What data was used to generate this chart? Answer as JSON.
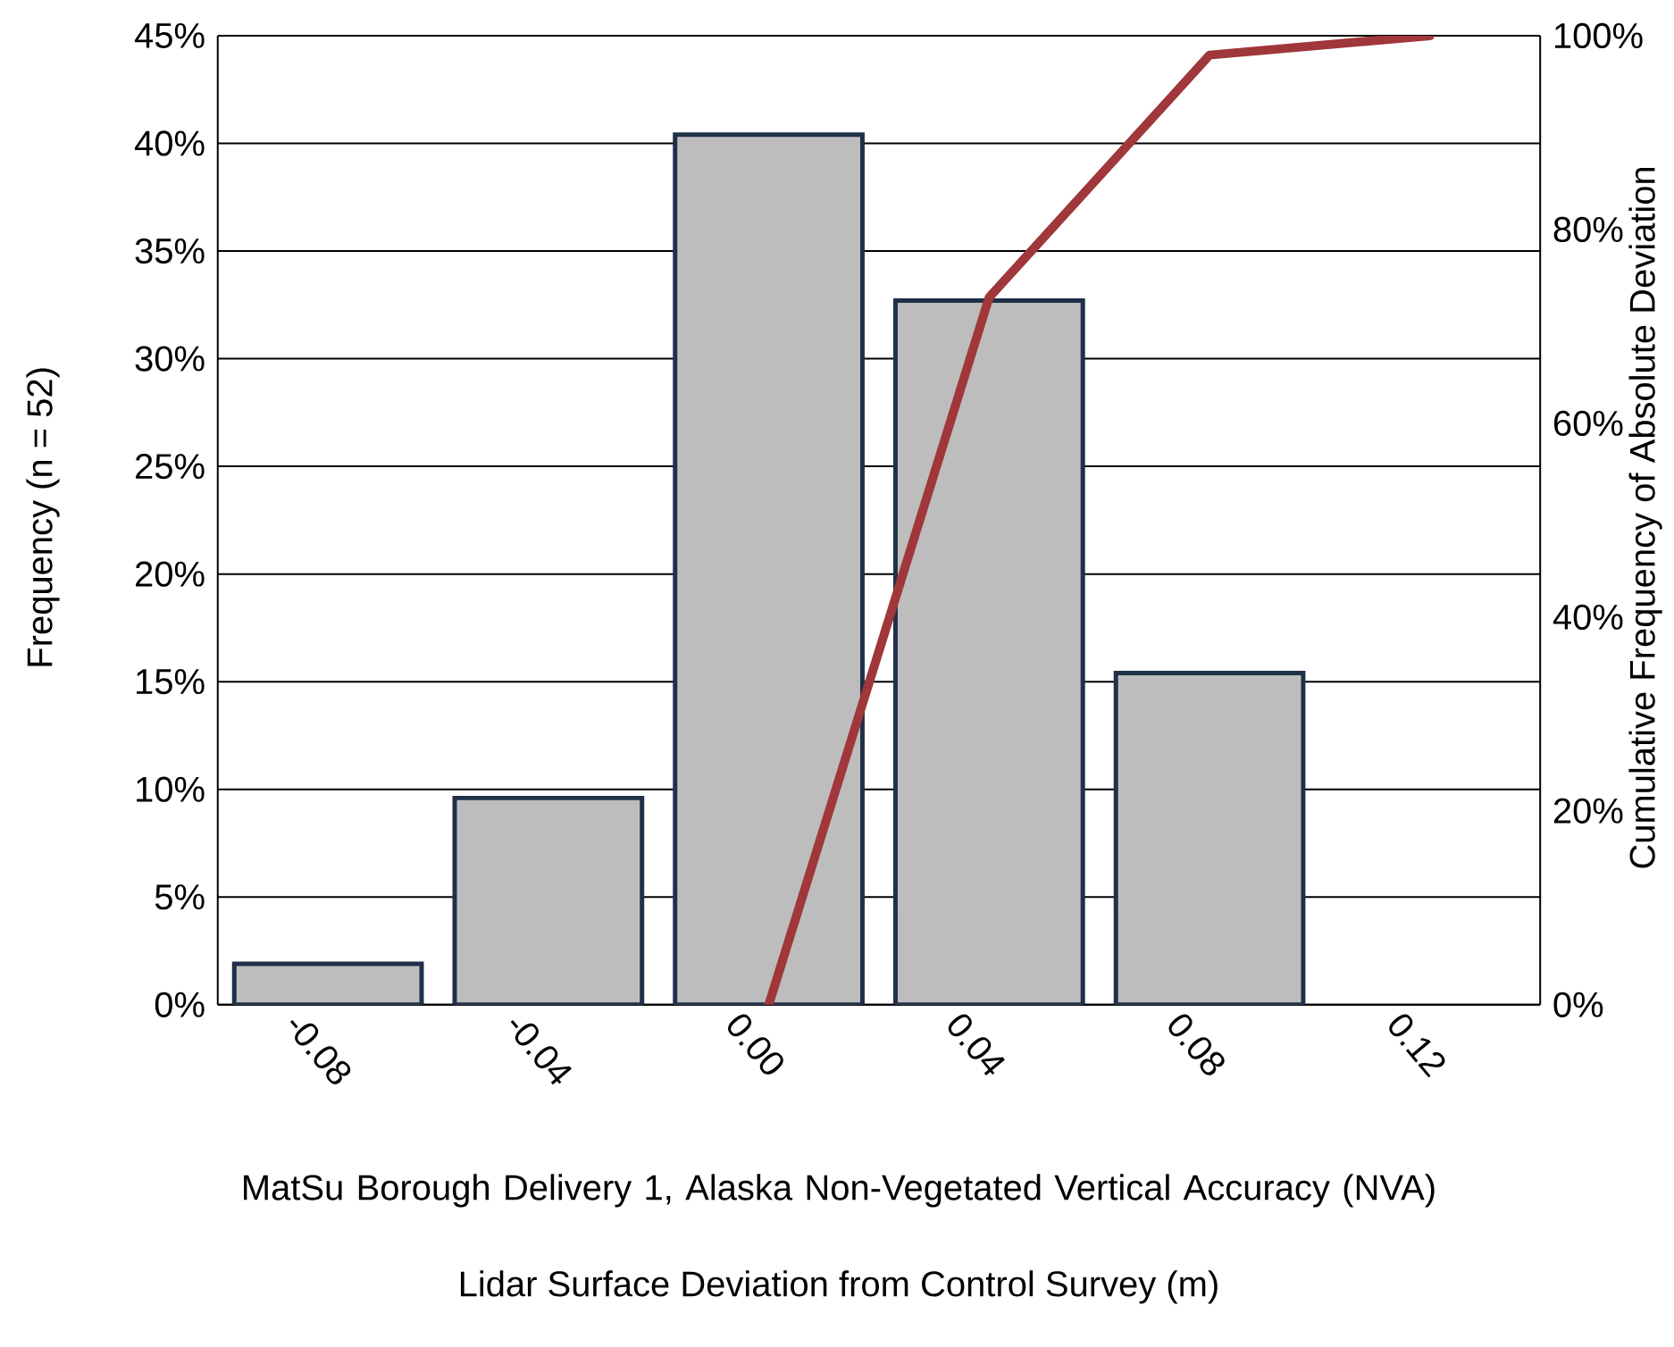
{
  "chart_data": {
    "type": "bar",
    "xlabel": "MatSu Borough Delivery 1, Alaska Non-Vegetated Vertical Accuracy (NVA)",
    "ylabel": "Frequency (n = 52)",
    "y2label": "Cumulative Frequency of Absolute Deviation",
    "annotations": [
      "Lidar Surface Deviation from Control Survey (m)"
    ],
    "categories": [
      "-0.08",
      "-0.04",
      "0.00",
      "0.04",
      "0.08",
      "0.12"
    ],
    "series": [
      {
        "color": "#bdbdbd",
        "values": [
          1.9,
          9.6,
          40.4,
          32.7,
          15.4,
          null
        ]
      },
      {
        "type": "line",
        "axis": "y2",
        "color": "#a0373a",
        "values": [
          null,
          null,
          0,
          73,
          98,
          100
        ]
      }
    ],
    "ylim": [
      0,
      45
    ],
    "yticks": [
      {
        "value": 0,
        "label": "0%"
      },
      {
        "value": 5,
        "label": "5%"
      },
      {
        "value": 10,
        "label": "10%"
      },
      {
        "value": 15,
        "label": "15%"
      },
      {
        "value": 20,
        "label": "20%"
      },
      {
        "value": 25,
        "label": "25%"
      },
      {
        "value": 30,
        "label": "30%"
      },
      {
        "value": 35,
        "label": "35%"
      },
      {
        "value": 40,
        "label": "40%"
      },
      {
        "value": 45,
        "label": "45%"
      }
    ],
    "y2lim": [
      0,
      100
    ],
    "y2ticks": [
      {
        "value": 0,
        "label": "0%"
      },
      {
        "value": 20,
        "label": "20%"
      },
      {
        "value": 40,
        "label": "40%"
      },
      {
        "value": 60,
        "label": "60%"
      },
      {
        "value": 80,
        "label": "80%"
      },
      {
        "value": 100,
        "label": "100%"
      }
    ],
    "grid": "y"
  }
}
